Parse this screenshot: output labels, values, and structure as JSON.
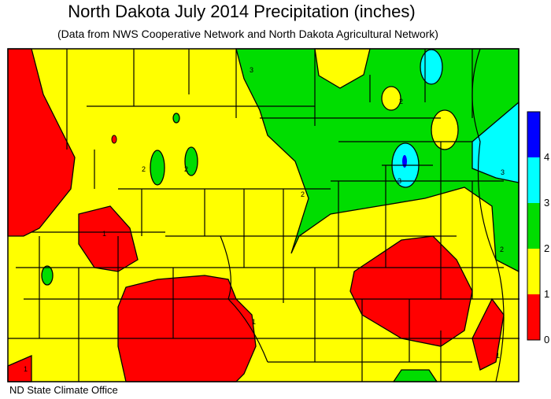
{
  "header": {
    "title": "North Dakota July 2014 Precipitation (inches)",
    "subtitle": "(Data from NWS Cooperative Network and North Dakota Agricultural Network)"
  },
  "legend": {
    "ticks": [
      0,
      1,
      2,
      3,
      4
    ],
    "colors": [
      "#ff0000",
      "#ffff00",
      "#00dd00",
      "#00ffff",
      "#0000ff"
    ]
  },
  "contour_labels": [
    "3",
    "3",
    "2",
    "2",
    "2",
    "2",
    "1",
    "1",
    "1",
    "1",
    "3",
    "2"
  ],
  "footer": "ND State Climate Office"
}
